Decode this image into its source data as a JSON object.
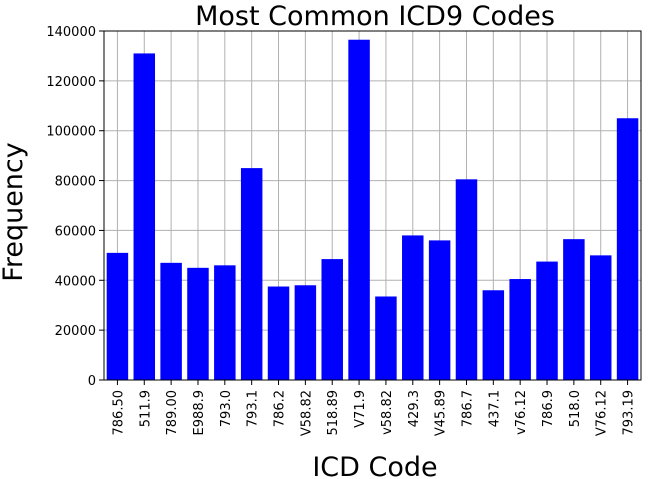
{
  "chart_data": {
    "type": "bar",
    "title": "Most Common ICD9 Codes",
    "xlabel": "ICD Code",
    "ylabel": "Frequency",
    "categories": [
      "786.50",
      "511.9",
      "789.00",
      "E988.9",
      "793.0",
      "793.1",
      "786.2",
      "V58.82",
      "518.89",
      "V71.9",
      "v58.82",
      "429.3",
      "V45.89",
      "786.7",
      "437.1",
      "v76.12",
      "786.9",
      "518.0",
      "V76.12",
      "793.19"
    ],
    "values": [
      51000,
      131000,
      47000,
      45000,
      46000,
      85000,
      37500,
      38000,
      48500,
      136500,
      33500,
      58000,
      56000,
      80500,
      36000,
      40500,
      47500,
      56500,
      50000,
      105000
    ],
    "ylim": [
      0,
      140000
    ],
    "yticks": [
      0,
      20000,
      40000,
      60000,
      80000,
      100000,
      120000,
      140000
    ],
    "bar_color": "#0000ff",
    "grid": true
  }
}
